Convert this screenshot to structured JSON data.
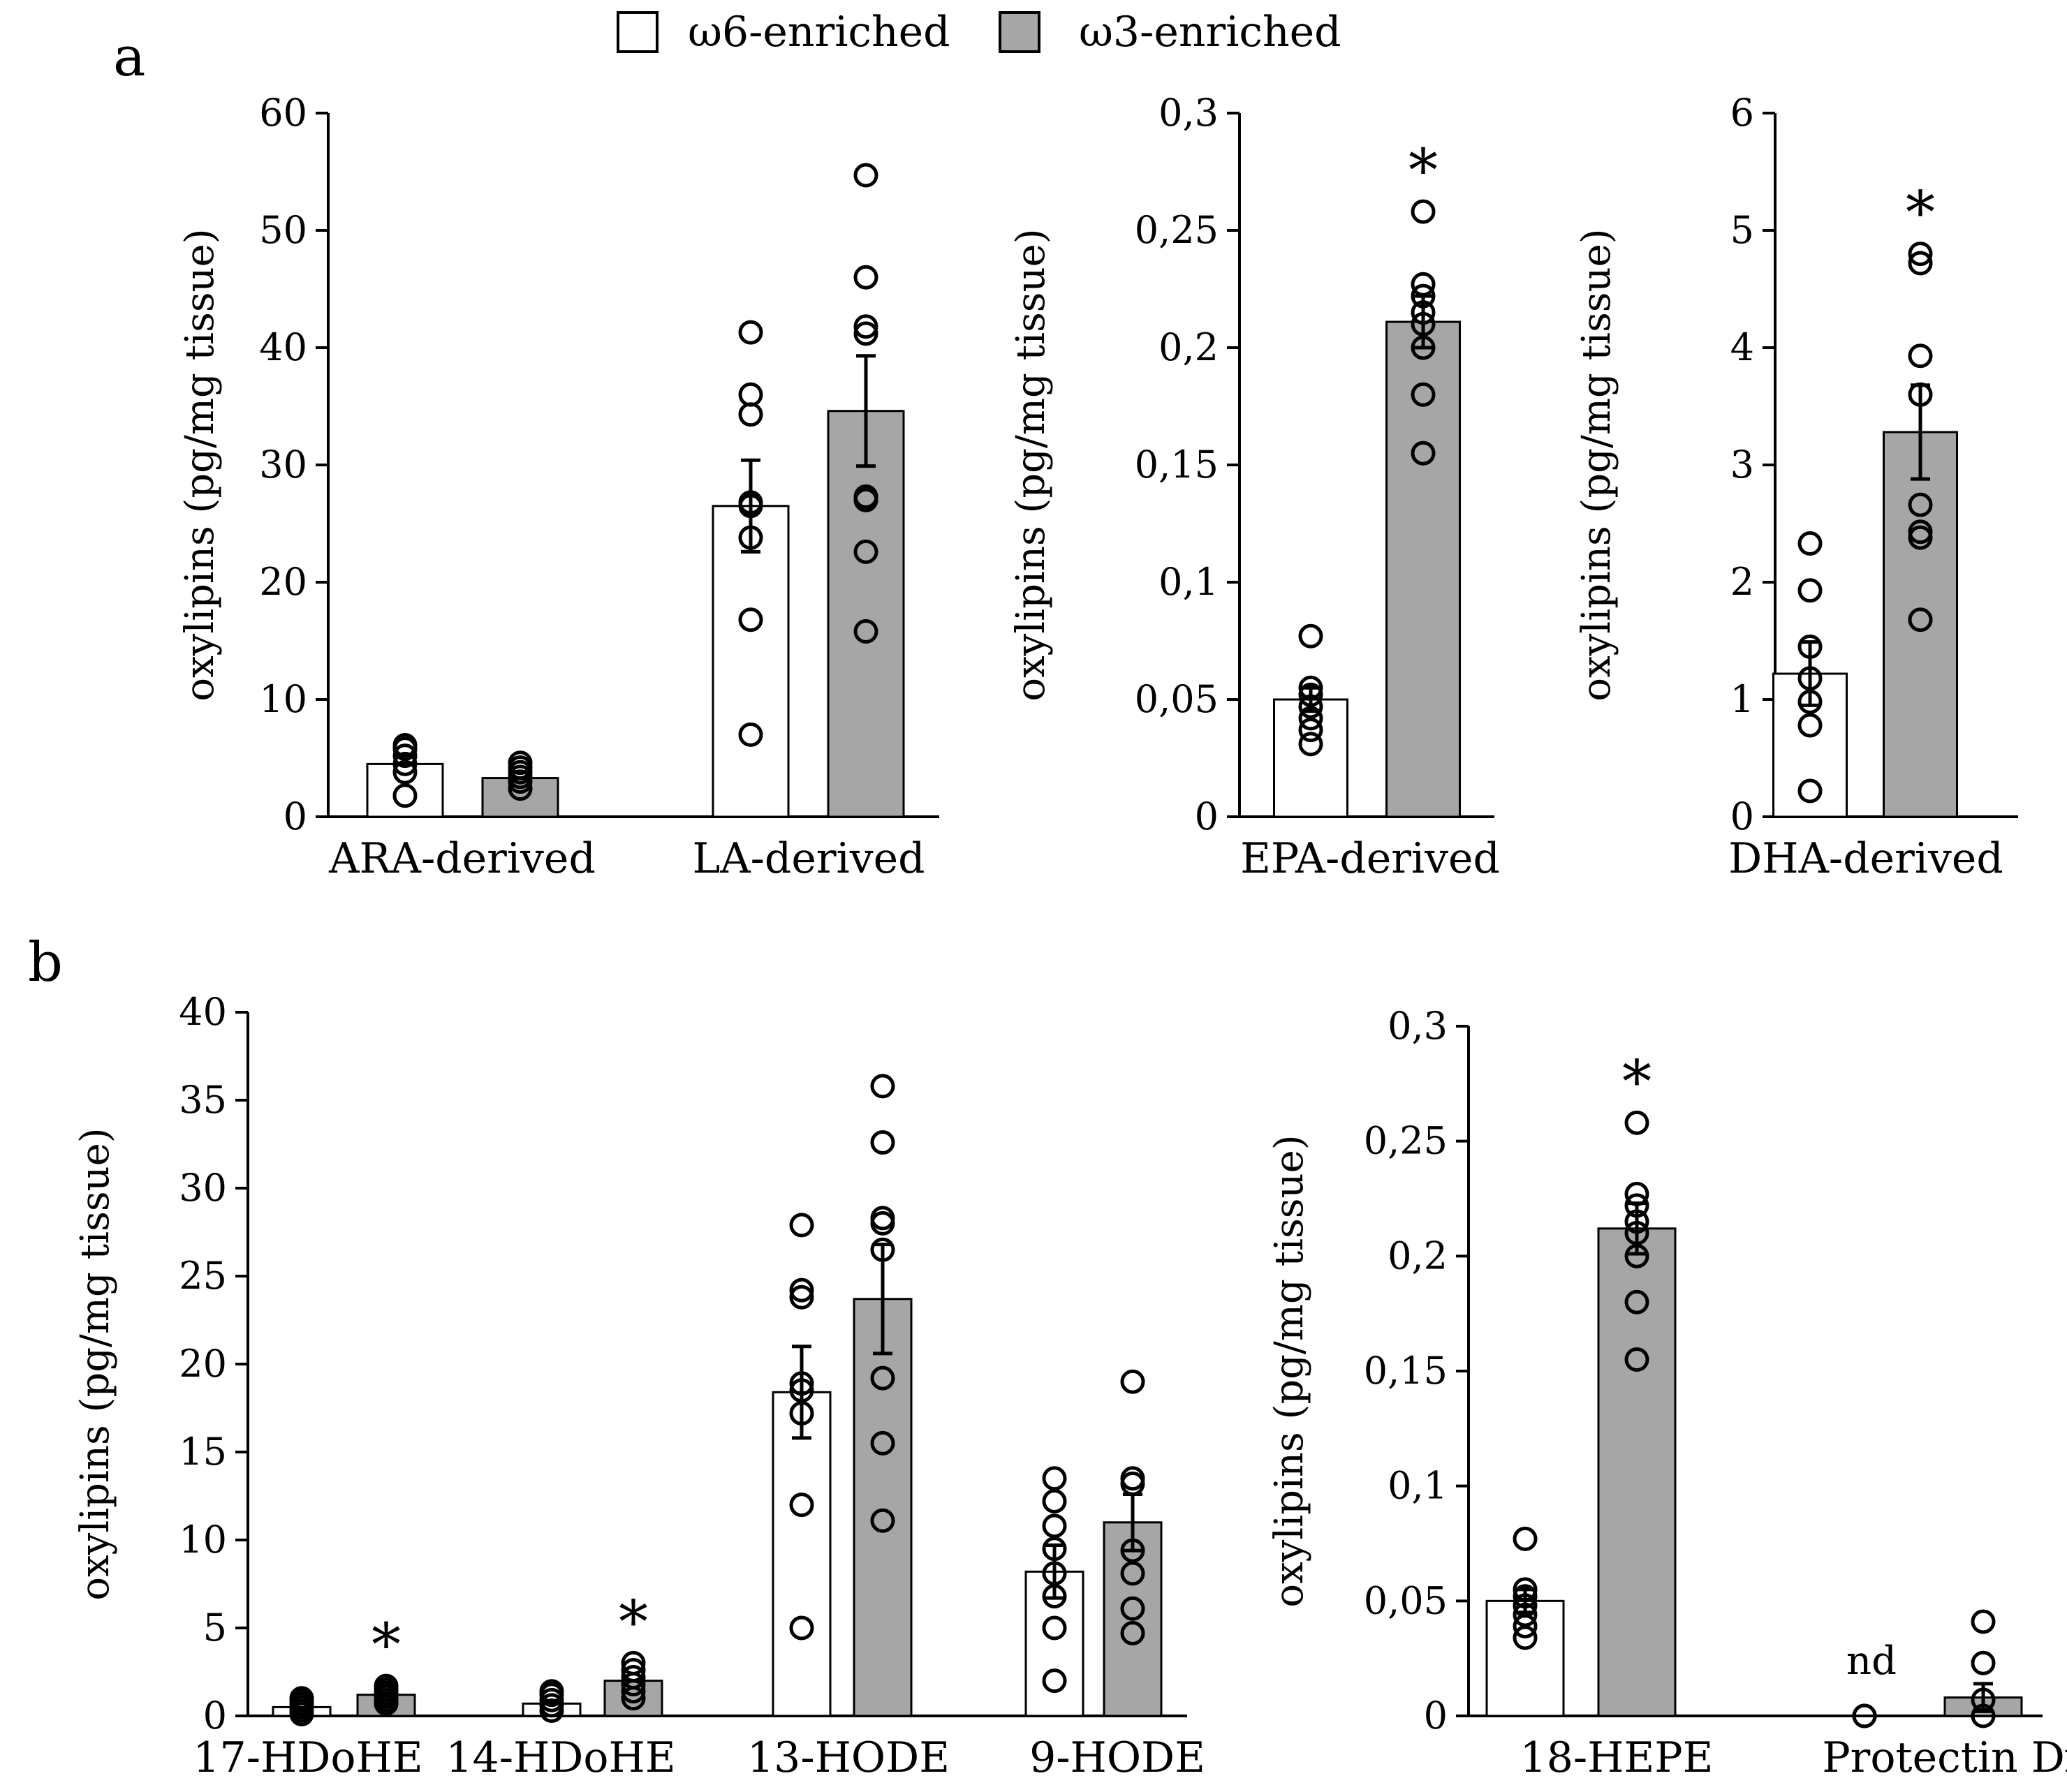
{
  "legend": {
    "items": [
      {
        "label": "ω6-enriched",
        "color": "#ffffff"
      },
      {
        "label": "ω3-enriched",
        "color": "#a6a6a6"
      }
    ]
  },
  "colors": {
    "w6": "#ffffff",
    "w3": "#a6a6a6",
    "axis": "#000000"
  },
  "chart_data": [
    {
      "panel": "a",
      "type": "bar",
      "ylabel": "oxylipins (pg/mg tissue)",
      "ylim": [
        0,
        60
      ],
      "yticks": [
        "0",
        "10",
        "20",
        "30",
        "40",
        "50",
        "60"
      ],
      "categories": [
        "ARA-derived",
        "LA-derived"
      ],
      "series": [
        {
          "name": "ω6-enriched",
          "values": [
            4.5,
            26.5
          ],
          "sem": [
            null,
            3.9
          ],
          "points": [
            [
              1.8,
              3.8,
              4.5,
              5.2,
              5.8,
              6.1
            ],
            [
              7,
              16.8,
              23.8,
              26.5,
              26.8,
              34.3,
              36.0,
              41.3
            ]
          ]
        },
        {
          "name": "ω3-enriched",
          "values": [
            3.3,
            34.6
          ],
          "sem": [
            null,
            4.7
          ],
          "points": [
            [
              2.4,
              3.0,
              3.4,
              3.8,
              4.2,
              4.6
            ],
            [
              15.8,
              22.6,
              27.0,
              27.3,
              41.2,
              41.8,
              46.0,
              54.7
            ]
          ]
        }
      ],
      "annotations": []
    },
    {
      "panel": "a",
      "type": "bar",
      "ylabel": "oxylipins (pg/mg tissue)",
      "ylim": [
        0,
        0.3
      ],
      "yticks": [
        "0",
        "0,05",
        "0,1",
        "0,15",
        "0,2",
        "0,25",
        "0,3"
      ],
      "categories": [
        "EPA-derived"
      ],
      "series": [
        {
          "name": "ω6-enriched",
          "values": [
            0.05
          ],
          "sem": [
            0.005
          ],
          "points": [
            [
              0.031,
              0.037,
              0.042,
              0.047,
              0.052,
              0.055,
              0.077
            ]
          ]
        },
        {
          "name": "ω3-enriched",
          "values": [
            0.211
          ],
          "sem": [
            0.011
          ],
          "points": [
            [
              0.155,
              0.18,
              0.2,
              0.21,
              0.215,
              0.222,
              0.227,
              0.258
            ]
          ]
        }
      ],
      "annotations": [
        {
          "text": "*",
          "category": "EPA-derived",
          "series": "ω3-enriched"
        }
      ]
    },
    {
      "panel": "a",
      "type": "bar",
      "ylabel": "oxylipins (pg/mg tissue)",
      "ylim": [
        0,
        6
      ],
      "yticks": [
        "0",
        "1",
        "2",
        "3",
        "4",
        "5",
        "6"
      ],
      "categories": [
        "DHA-derived"
      ],
      "series": [
        {
          "name": "ω6-enriched",
          "values": [
            1.22
          ],
          "sem": [
            0.27
          ],
          "points": [
            [
              0.22,
              0.78,
              0.98,
              1.18,
              1.45,
              1.93,
              2.33
            ]
          ]
        },
        {
          "name": "ω3-enriched",
          "values": [
            3.28
          ],
          "sem": [
            0.4
          ],
          "points": [
            [
              1.68,
              2.38,
              2.43,
              2.66,
              3.6,
              3.93,
              4.72,
              4.8
            ]
          ]
        }
      ],
      "annotations": [
        {
          "text": "*",
          "category": "DHA-derived",
          "series": "ω3-enriched"
        }
      ]
    },
    {
      "panel": "b",
      "type": "bar",
      "ylabel": "oxylipins (pg/mg tissue)",
      "ylim": [
        0,
        40
      ],
      "yticks": [
        "0",
        "5",
        "10",
        "15",
        "20",
        "25",
        "30",
        "35",
        "40"
      ],
      "categories": [
        "17-HDoHE",
        "14-HDoHE",
        "13-HODE",
        "9-HODE"
      ],
      "series": [
        {
          "name": "ω6-enriched",
          "values": [
            0.5,
            0.7,
            18.4,
            8.2
          ],
          "sem": [
            null,
            null,
            2.6,
            1.5
          ],
          "points": [
            [
              0.1,
              0.3,
              0.5,
              0.7,
              0.9,
              1.0
            ],
            [
              0.3,
              0.6,
              0.9,
              1.2,
              1.4
            ],
            [
              5,
              12,
              17.2,
              18.5,
              18.9,
              23.8,
              24.2,
              27.9
            ],
            [
              2,
              5,
              6.8,
              8.1,
              9.5,
              10.8,
              12.2,
              13.5
            ]
          ]
        },
        {
          "name": "ω3-enriched",
          "values": [
            1.2,
            2.0,
            23.7,
            11.0
          ],
          "sem": [
            null,
            null,
            3.1,
            1.6
          ],
          "points": [
            [
              0.7,
              0.9,
              1.1,
              1.3,
              1.5,
              1.7
            ],
            [
              1.0,
              1.4,
              1.8,
              2.2,
              2.6,
              3.0
            ],
            [
              11.1,
              15.5,
              19.2,
              26.5,
              28.0,
              28.3,
              32.6,
              35.8
            ],
            [
              4.7,
              6.1,
              8.1,
              9.4,
              13.2,
              13.5,
              19
            ]
          ]
        }
      ],
      "annotations": [
        {
          "text": "*",
          "category": "17-HDoHE",
          "series": "ω3-enriched"
        },
        {
          "text": "*",
          "category": "14-HDoHE",
          "series": "ω3-enriched"
        }
      ]
    },
    {
      "panel": "b",
      "type": "bar",
      "ylabel": "oxylipins (pg/mg tissue)",
      "ylim": [
        0,
        0.3
      ],
      "yticks": [
        "0",
        "0,05",
        "0,1",
        "0,15",
        "0,2",
        "0,25",
        "0,3"
      ],
      "categories": [
        "18-HEPE",
        "Protectin Dx"
      ],
      "series": [
        {
          "name": "ω6-enriched",
          "values": [
            0.05,
            null
          ],
          "sem": [
            0.005,
            null
          ],
          "points": [
            [
              0.034,
              0.039,
              0.044,
              0.048,
              0.052,
              0.055,
              0.077
            ],
            [
              0,
              0
            ]
          ]
        },
        {
          "name": "ω3-enriched",
          "values": [
            0.212,
            0.008
          ],
          "sem": [
            0.011,
            0.006
          ],
          "points": [
            [
              0.155,
              0.18,
              0.2,
              0.21,
              0.215,
              0.222,
              0.227,
              0.258
            ],
            [
              0,
              0.007,
              0.023,
              0.041
            ]
          ]
        }
      ],
      "annotations": [
        {
          "text": "*",
          "category": "18-HEPE",
          "series": "ω3-enriched"
        },
        {
          "text": "nd",
          "category": "Protectin Dx",
          "series": "ω6-enriched"
        }
      ]
    }
  ],
  "panel_labels": {
    "a": "a",
    "b": "b"
  }
}
